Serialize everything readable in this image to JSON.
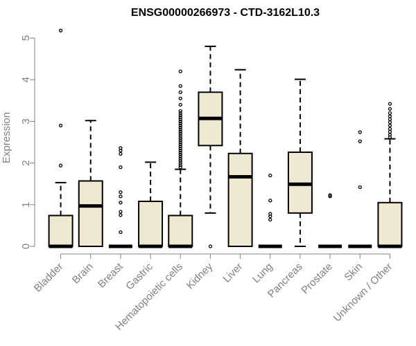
{
  "chart_data": {
    "type": "boxplot",
    "title": "ENSG00000266973 - CTD-3162L10.3",
    "xlabel": "",
    "ylabel": "Expression",
    "ylim": [
      0,
      5
    ],
    "yticks": [
      0,
      1,
      2,
      3,
      4,
      5
    ],
    "grid": false,
    "colors": {
      "box_fill": "#efe9d1",
      "box_stroke": "#000000",
      "axis": "#808080"
    },
    "categories": [
      "Bladder",
      "Brain",
      "Breast",
      "Gastric",
      "Hematopoietic cells",
      "Kidney",
      "Liver",
      "Lung",
      "Pancreas",
      "Prostate",
      "Skin",
      "Unknown / Other"
    ],
    "boxes": [
      {
        "q1": 0,
        "median": 0,
        "q3": 0.74,
        "whisker_low": 0,
        "whisker_high": 1.53,
        "outliers": [
          1.94,
          2.9,
          5.18
        ]
      },
      {
        "q1": 0,
        "median": 0.97,
        "q3": 1.57,
        "whisker_low": 0,
        "whisker_high": 3.02,
        "outliers": []
      },
      {
        "q1": 0,
        "median": 0,
        "q3": 0,
        "whisker_low": 0,
        "whisker_high": 0,
        "outliers": [
          0.34,
          0.75,
          0.83,
          1.05,
          1.2,
          1.3,
          1.9,
          2.22,
          2.3,
          2.36
        ]
      },
      {
        "q1": 0,
        "median": 0,
        "q3": 1.08,
        "whisker_low": 0,
        "whisker_high": 2.02,
        "outliers": []
      },
      {
        "q1": 0,
        "median": 0,
        "q3": 0.74,
        "whisker_low": 0,
        "whisker_high": 1.85,
        "outliers": [
          1.9,
          1.95,
          2.0,
          2.05,
          2.1,
          2.15,
          2.2,
          2.25,
          2.3,
          2.35,
          2.4,
          2.45,
          2.5,
          2.55,
          2.6,
          2.65,
          2.7,
          2.75,
          2.8,
          2.85,
          2.9,
          2.95,
          3.0,
          3.05,
          3.1,
          3.15,
          3.2,
          3.25,
          3.4,
          3.55,
          3.7,
          3.85,
          4.2
        ]
      },
      {
        "q1": 2.42,
        "median": 3.07,
        "q3": 3.7,
        "whisker_low": 0.8,
        "whisker_high": 4.8,
        "outliers": [
          0
        ]
      },
      {
        "q1": 0,
        "median": 1.67,
        "q3": 2.23,
        "whisker_low": 0,
        "whisker_high": 4.24,
        "outliers": []
      },
      {
        "q1": 0,
        "median": 0,
        "q3": 0,
        "whisker_low": 0,
        "whisker_high": 0,
        "outliers": [
          0.64,
          0.72,
          0.78,
          1.1,
          1.7
        ]
      },
      {
        "q1": 0.8,
        "median": 1.49,
        "q3": 2.26,
        "whisker_low": 0,
        "whisker_high": 4.01,
        "outliers": []
      },
      {
        "q1": 0,
        "median": 0,
        "q3": 0,
        "whisker_low": 0,
        "whisker_high": 0,
        "outliers": [
          1.2,
          1.23
        ]
      },
      {
        "q1": 0,
        "median": 0,
        "q3": 0,
        "whisker_low": 0,
        "whisker_high": 0,
        "outliers": [
          1.42,
          2.52,
          2.74
        ]
      },
      {
        "q1": 0,
        "median": 0,
        "q3": 1.05,
        "whisker_low": 0,
        "whisker_high": 2.58,
        "outliers": [
          2.62,
          2.68,
          2.75,
          2.82,
          2.9,
          2.98,
          3.05,
          3.12,
          3.2,
          3.3,
          3.42
        ]
      }
    ]
  }
}
